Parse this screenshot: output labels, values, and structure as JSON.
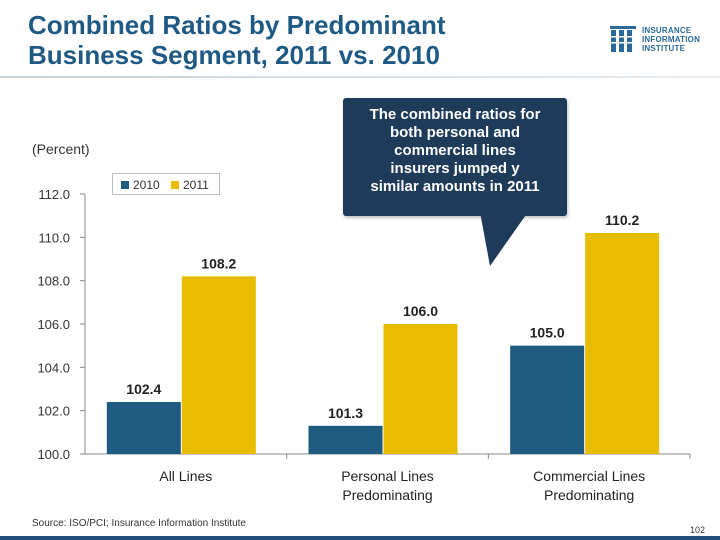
{
  "slide": {
    "title_line1": "Combined Ratios by Predominant",
    "title_line2": "Business Segment, 2011 vs. 2010",
    "unit_label": "(Percent)",
    "source": "Source: ISO/PCI; Insurance Information Institute",
    "page_number": "102",
    "logo": {
      "line1": "INSURANCE",
      "line2": "INFORMATION",
      "line3": "INSTITUTE"
    },
    "callout": {
      "line1": "The combined ratios for",
      "line2": "both personal and",
      "line3": "commercial lines",
      "line4": "insurers jumped y",
      "line5": "similar amounts in 2011"
    }
  },
  "colors": {
    "title": "#1f5a85",
    "series_2010": "#1f5a80",
    "series_2011": "#e8bc00",
    "callout_bg": "#1e3b59"
  },
  "chart_data": {
    "type": "bar",
    "categories": [
      [
        "All Lines"
      ],
      [
        "Personal Lines",
        "Predominating"
      ],
      [
        "Commercial Lines",
        "Predominating"
      ]
    ],
    "series": [
      {
        "name": "2010",
        "values": [
          102.4,
          101.3,
          105.0
        ],
        "labels": [
          "102.4",
          "101.3",
          "105.0"
        ]
      },
      {
        "name": "2011",
        "values": [
          108.2,
          106.0,
          110.2
        ],
        "labels": [
          "108.2",
          "106.0",
          "110.2"
        ]
      }
    ],
    "ylim": [
      100,
      112
    ],
    "yticks": [
      100,
      102,
      104,
      106,
      108,
      110,
      112
    ],
    "ytick_labels": [
      "100.0",
      "102.0",
      "104.0",
      "106.0",
      "108.0",
      "110.0",
      "112.0"
    ],
    "ylabel": "(Percent)",
    "legend_position": "top-left"
  }
}
